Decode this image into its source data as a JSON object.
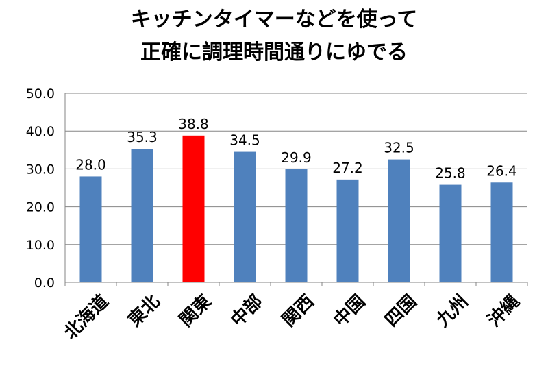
{
  "chart_data": {
    "type": "bar",
    "title_lines": [
      "キッチンタイマーなどを使って",
      "正確に調理時間通りにゆでる"
    ],
    "categories": [
      "北海道",
      "東北",
      "関東",
      "中部",
      "関西",
      "中国",
      "四国",
      "九州",
      "沖縄"
    ],
    "values": [
      28.0,
      35.3,
      38.8,
      34.5,
      29.9,
      27.2,
      32.5,
      25.8,
      26.4
    ],
    "value_labels": [
      "28.0",
      "35.3",
      "38.8",
      "34.5",
      "29.9",
      "27.2",
      "32.5",
      "25.8",
      "26.4"
    ],
    "ylim": [
      0,
      50
    ],
    "yticks": [
      0,
      10,
      20,
      30,
      40,
      50
    ],
    "ytick_labels": [
      "0.0",
      "10.0",
      "20.0",
      "30.0",
      "40.0",
      "50.0"
    ],
    "grid": true,
    "legend": false,
    "highlight_index": 2,
    "colors": {
      "bar": "#4f81bd",
      "highlight": "#ff0000",
      "grid": "#868686"
    }
  }
}
